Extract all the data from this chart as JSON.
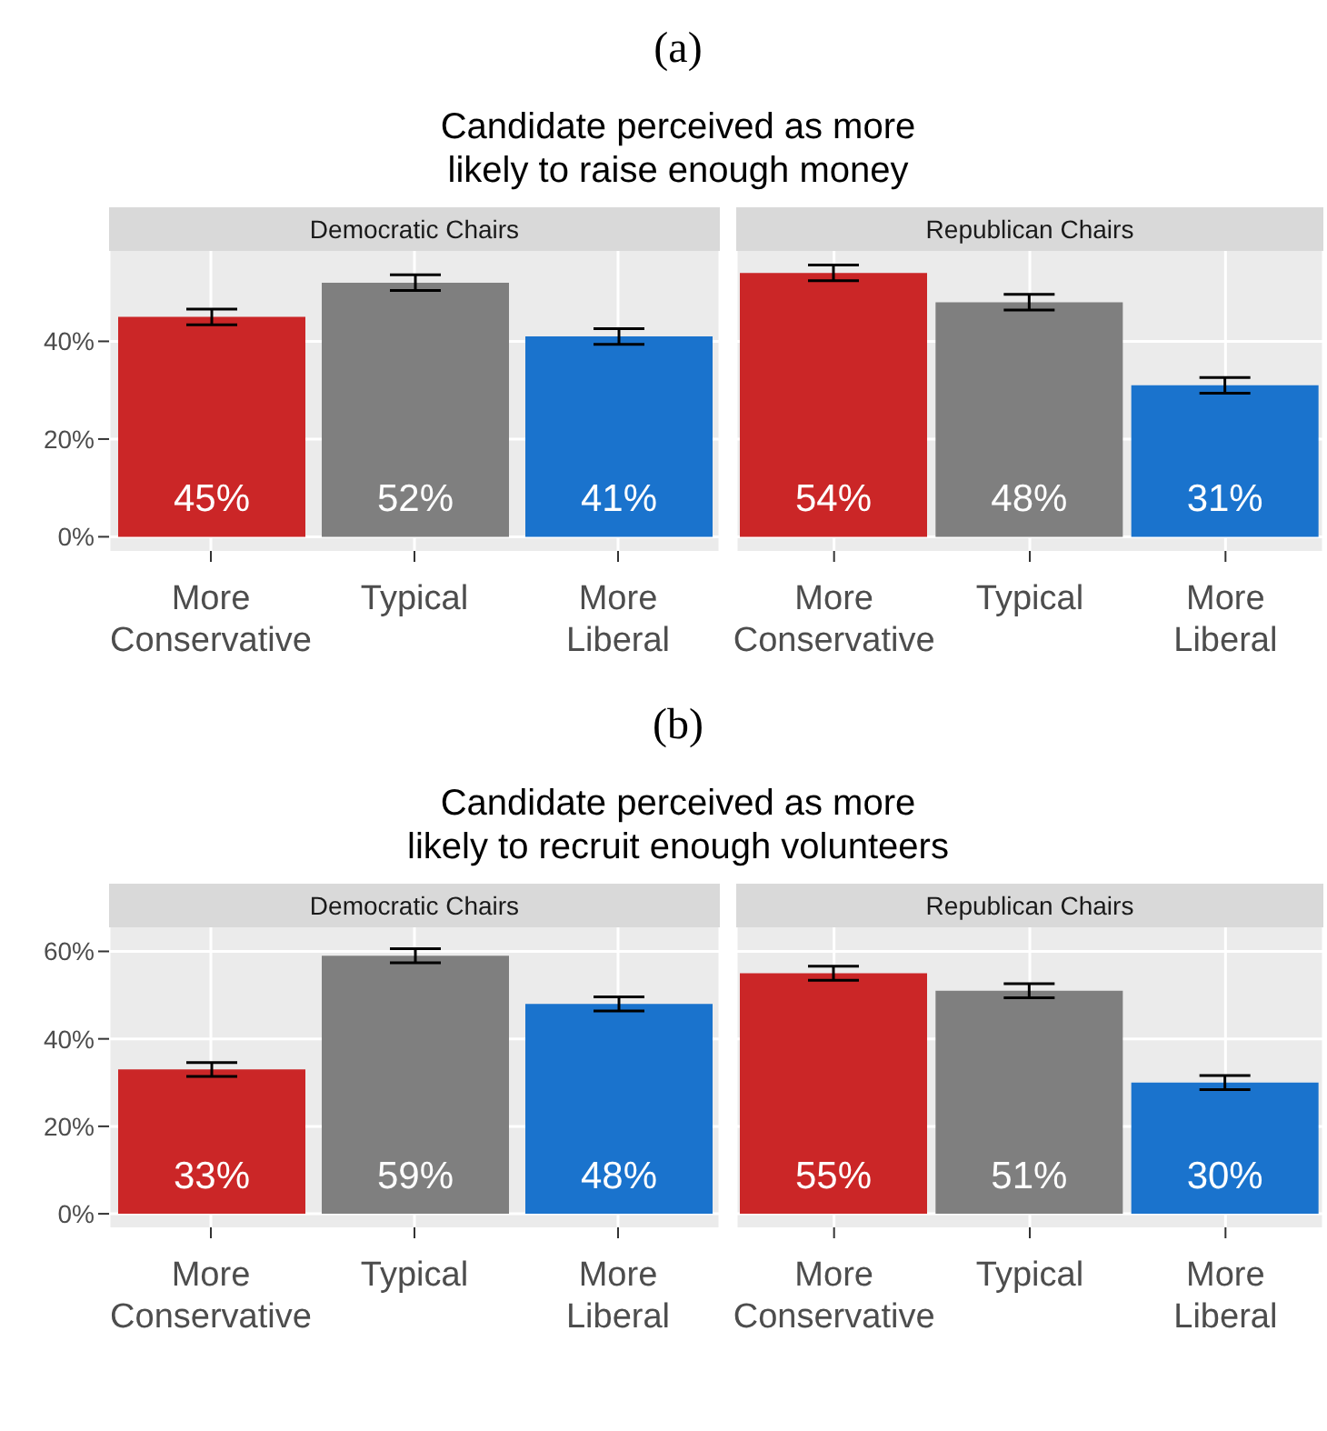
{
  "chart_data": [
    {
      "type": "bar",
      "title": "Candidate perceived as more\nlikely to raise enough money",
      "subtitle": "Democratic Chairs",
      "annotations": [
        "(a)"
      ],
      "categories": [
        "More\nConservative",
        "Typical",
        "More\nLiberal"
      ],
      "values": [
        45,
        52,
        41
      ],
      "errors": [
        1.6,
        1.6,
        1.6
      ],
      "value_labels": [
        "45%",
        "52%",
        "41%"
      ],
      "colors": [
        "#cb2627",
        "#7f7f7f",
        "#1a73cd"
      ],
      "ylim": [
        -2.9,
        58.5
      ],
      "yticks": [
        {
          "value": 0,
          "label": "0%"
        },
        {
          "value": 20,
          "label": "20%"
        },
        {
          "value": 40,
          "label": "40%"
        }
      ],
      "grid": true
    },
    {
      "type": "bar",
      "subtitle": "Republican Chairs",
      "categories": [
        "More\nConservative",
        "Typical",
        "More\nLiberal"
      ],
      "values": [
        54,
        48,
        31
      ],
      "errors": [
        1.6,
        1.6,
        1.6
      ],
      "value_labels": [
        "54%",
        "48%",
        "31%"
      ],
      "colors": [
        "#cb2627",
        "#7f7f7f",
        "#1a73cd"
      ],
      "ylim": [
        -2.9,
        58.5
      ],
      "yticks": [
        0,
        20,
        40
      ],
      "grid": true,
      "tick_labels": "x"
    },
    {
      "type": "bar",
      "title": "Candidate perceived as more\nlikely to recruit enough volunteers",
      "subtitle": "Democratic Chairs",
      "annotations": [
        "(b)"
      ],
      "categories": [
        "More\nConservative",
        "Typical",
        "More\nLiberal"
      ],
      "values": [
        33,
        59,
        48
      ],
      "errors": [
        1.6,
        1.6,
        1.6
      ],
      "value_labels": [
        "33%",
        "59%",
        "48%"
      ],
      "colors": [
        "#cb2627",
        "#7f7f7f",
        "#1a73cd"
      ],
      "ylim": [
        -3.1,
        65.5
      ],
      "yticks": [
        {
          "value": 0,
          "label": "0%"
        },
        {
          "value": 20,
          "label": "20%"
        },
        {
          "value": 40,
          "label": "40%"
        },
        {
          "value": 60,
          "label": "60%"
        }
      ],
      "grid": true
    },
    {
      "type": "bar",
      "subtitle": "Republican Chairs",
      "categories": [
        "More\nConservative",
        "Typical",
        "More\nLiberal"
      ],
      "values": [
        55,
        51,
        30
      ],
      "errors": [
        1.6,
        1.6,
        1.6
      ],
      "value_labels": [
        "55%",
        "51%",
        "30%"
      ],
      "colors": [
        "#cb2627",
        "#7f7f7f",
        "#1a73cd"
      ],
      "ylim": [
        -3.1,
        65.5
      ],
      "yticks": [
        0,
        20,
        40,
        60
      ],
      "grid": true,
      "tick_labels": "x"
    }
  ]
}
